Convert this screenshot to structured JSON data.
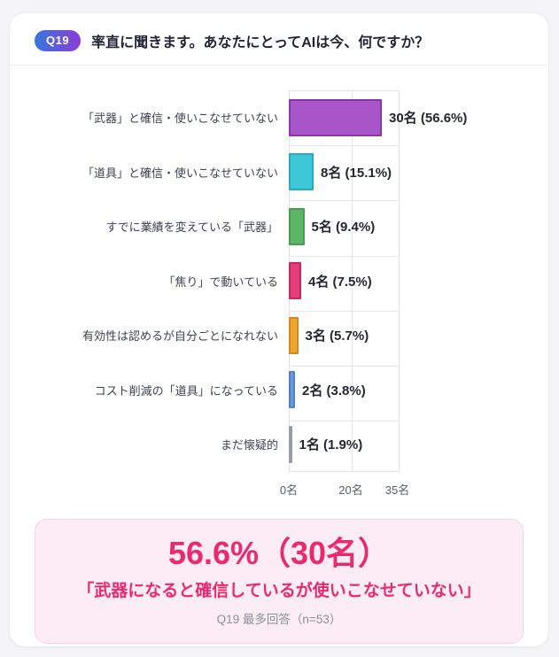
{
  "colors": {
    "accent_pink": "#ea2a70",
    "summary_bg": "#fcedf5",
    "summary_border": "#f5d2e4",
    "badge_gradient_start": "#3578dd",
    "badge_gradient_end": "#8d3bd6"
  },
  "header": {
    "badge": "Q19",
    "title": "率直に聞きます。あなたにとってAIは今、何ですか？"
  },
  "chart_data": {
    "type": "bar",
    "orientation": "horizontal",
    "title": "",
    "xlabel": "",
    "ylabel": "",
    "xlim": [
      0,
      35.7
    ],
    "grid": true,
    "legend": false,
    "categories": [
      "「武器」と確信・使いこなせていない",
      "「道具」と確信・使いこなせていない",
      "すでに業績を変えている「武器」",
      "「焦り」で動いている",
      "有効性は認めるが自分ごとになれない",
      "コスト削減の「道具」になっている",
      "まだ懐疑的"
    ],
    "values": [
      30,
      8,
      5,
      4,
      3,
      2,
      1
    ],
    "percentages": [
      56.6,
      15.1,
      9.4,
      7.5,
      5.7,
      3.8,
      1.9
    ],
    "value_labels": [
      "30名 (56.6%)",
      "8名 (15.1%)",
      "5名 (9.4%)",
      "4名 (7.5%)",
      "3名 (5.7%)",
      "2名 (3.8%)",
      "1名 (1.9%)"
    ],
    "bar_colors": [
      "#a855c8",
      "#3ec6d9",
      "#5cb666",
      "#e43d79",
      "#f2a32c",
      "#6699dd",
      "#9a9da3"
    ],
    "bar_border_colors": [
      "#8a35ab",
      "#27aabd",
      "#43a04f",
      "#c72861",
      "#d4891b",
      "#4d84c8",
      "#85888e"
    ],
    "x_ticks": [
      {
        "label": "0名",
        "value": 0
      },
      {
        "label": "20名",
        "value": 20
      },
      {
        "label": "35名",
        "value": 35
      }
    ],
    "n": 53
  },
  "summary": {
    "headline": "56.6%（30名）",
    "subtitle": "「武器になると確信しているが使いこなせていない」",
    "note": "Q19 最多回答（n=53）"
  }
}
